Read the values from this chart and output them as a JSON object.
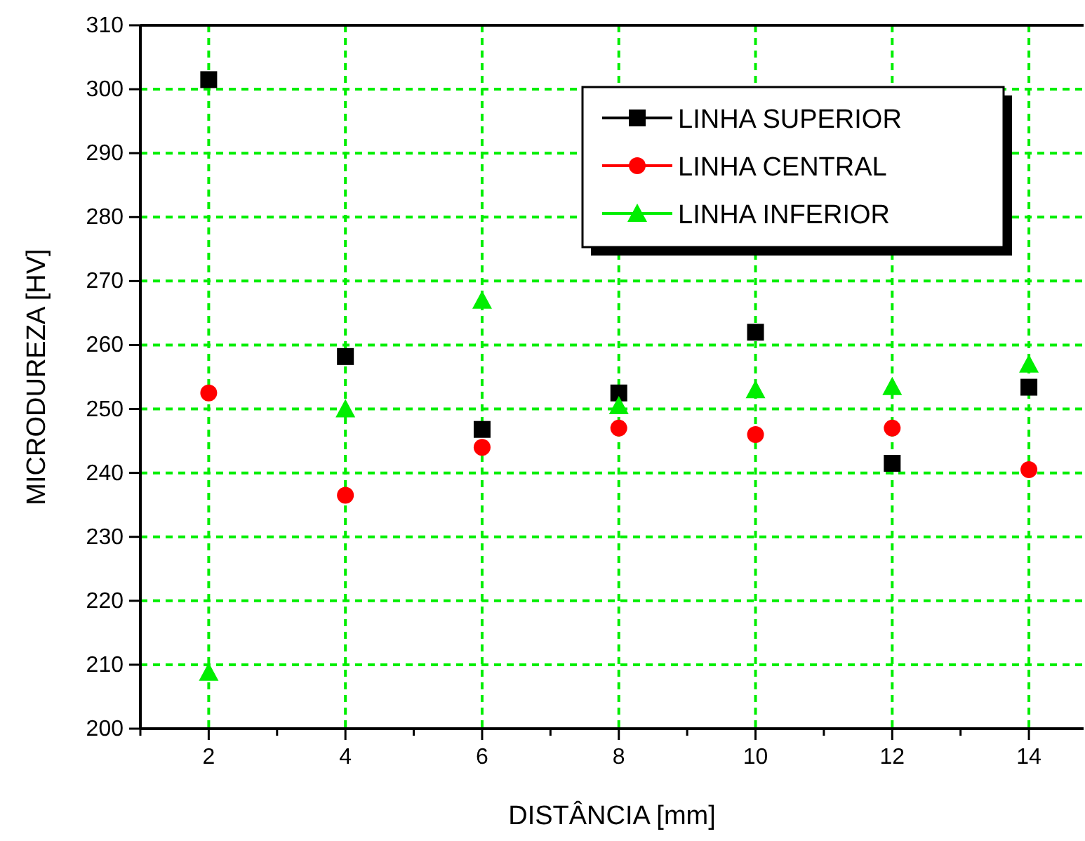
{
  "chart_data": {
    "type": "scatter",
    "xlabel": "DISTÂNCIA [mm]",
    "ylabel": "MICRODUREZA [HV]",
    "x": [
      2,
      4,
      6,
      8,
      10,
      12,
      14
    ],
    "series": [
      {
        "name": "LINHA SUPERIOR",
        "color": "#000000",
        "marker": "square",
        "values": [
          301.5,
          258.2,
          246.8,
          252.5,
          262,
          241.5,
          253.4
        ]
      },
      {
        "name": "LINHA CENTRAL",
        "color": "#ff0000",
        "marker": "circle",
        "values": [
          252.5,
          236.5,
          244,
          247,
          246,
          247,
          240.5
        ]
      },
      {
        "name": "LINHA INFERIOR",
        "color": "#00ee00",
        "marker": "triangle",
        "values": [
          208.8,
          250,
          267,
          250.5,
          253,
          253.5,
          257
        ]
      }
    ],
    "xlim": [
      1,
      14.8
    ],
    "xticks": [
      {
        "value": 1,
        "label": null
      },
      2,
      {
        "value": 3,
        "label": null
      },
      4,
      {
        "value": 5,
        "label": null
      },
      6,
      {
        "value": 7,
        "label": null
      },
      8,
      {
        "value": 9,
        "label": null
      },
      10,
      {
        "value": 11,
        "label": null
      },
      12,
      {
        "value": 13,
        "label": null
      },
      14
    ],
    "ylim": [
      200,
      310
    ],
    "yticks": [
      200,
      210,
      220,
      230,
      240,
      250,
      260,
      270,
      280,
      290,
      300,
      310
    ],
    "grid": true,
    "legend": "top right"
  }
}
